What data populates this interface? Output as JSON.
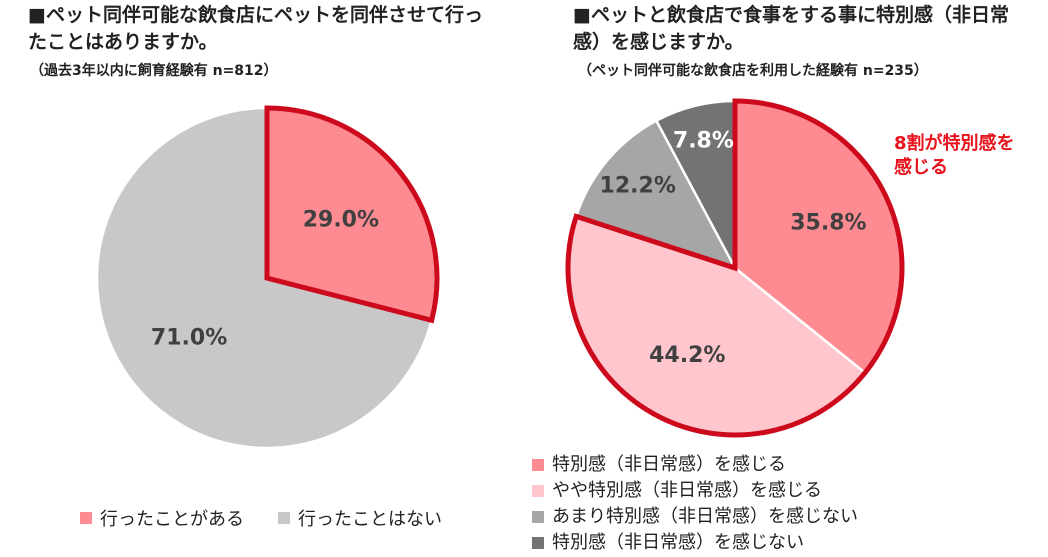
{
  "chart_data": [
    {
      "type": "pie",
      "title": "■ペット同伴可能な飲食店にペットを同伴させて行ったことはありますか。",
      "subtitle": "（過去3年以内に飼育経験有 n=812）",
      "categories": [
        "行ったことがある",
        "行ったことはない"
      ],
      "values": [
        29.0,
        71.0
      ],
      "labels": [
        "29.0%",
        "71.0%"
      ],
      "colors": [
        "#ff8b92",
        "#c8c8c8"
      ],
      "highlight": [
        0
      ],
      "legend_position": "bottom"
    },
    {
      "type": "pie",
      "title": "■ペットと飲食店で食事をする事に特別感（非日常感）を感じますか。",
      "subtitle": "（ペット同伴可能な飲食店を利用した経験有 n=235）",
      "categories": [
        "特別感（非日常感）を感じる",
        "やや特別感（非日常感）を感じる",
        "あまり特別感（非日常感）を感じない",
        "特別感（非日常感）を感じない"
      ],
      "values": [
        35.8,
        44.2,
        12.2,
        7.8
      ],
      "labels": [
        "35.8%",
        "44.2%",
        "12.2%",
        "7.8%"
      ],
      "colors": [
        "#ff8b92",
        "#ffc7cd",
        "#a6a6a6",
        "#737373"
      ],
      "highlight": [
        0,
        1
      ],
      "annotation": "8割が特別感を\n感じる",
      "legend_position": "bottom"
    }
  ],
  "accent_color": "#cc0a1c"
}
